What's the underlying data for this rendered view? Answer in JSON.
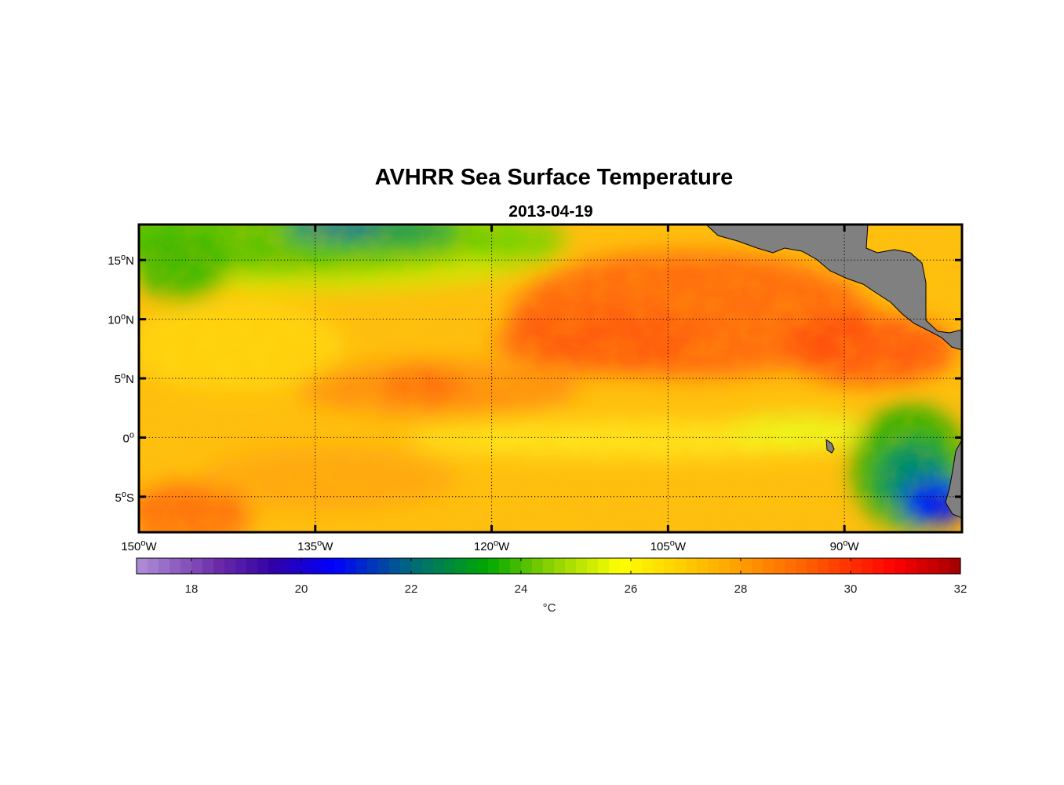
{
  "title": "AVHRR Sea Surface Temperature",
  "subtitle": "2013-04-19",
  "map": {
    "lon_range": [
      -150,
      -80
    ],
    "lat_range": [
      -8,
      18
    ],
    "lon_ticks": [
      {
        "value": -150,
        "num": "150",
        "sup": "o",
        "hemi": "W"
      },
      {
        "value": -135,
        "num": "135",
        "sup": "o",
        "hemi": "W"
      },
      {
        "value": -120,
        "num": "120",
        "sup": "o",
        "hemi": "W"
      },
      {
        "value": -105,
        "num": "105",
        "sup": "o",
        "hemi": "W"
      },
      {
        "value": -90,
        "num": "90",
        "sup": "o",
        "hemi": "W"
      }
    ],
    "lat_ticks": [
      {
        "value": 15,
        "num": "15",
        "sup": "o",
        "hemi": "N"
      },
      {
        "value": 10,
        "num": "10",
        "sup": "o",
        "hemi": "N"
      },
      {
        "value": 5,
        "num": "5",
        "sup": "o",
        "hemi": "N"
      },
      {
        "value": 0,
        "num": "0",
        "sup": "o",
        "hemi": ""
      },
      {
        "value": -5,
        "num": "5",
        "sup": "o",
        "hemi": "S"
      }
    ],
    "grid": true,
    "land_color": "#808080"
  },
  "colorbar": {
    "range": [
      17,
      32
    ],
    "ticks": [
      18,
      20,
      22,
      24,
      26,
      28,
      30,
      32
    ],
    "tick_labels": [
      "18",
      "20",
      "22",
      "24",
      "26",
      "28",
      "30",
      "32"
    ],
    "unit_label": "°C",
    "stops": [
      {
        "v": 17,
        "c": "#b090d8"
      },
      {
        "v": 18.5,
        "c": "#6a2aa8"
      },
      {
        "v": 19.5,
        "c": "#3000a8"
      },
      {
        "v": 20.6,
        "c": "#0000ff"
      },
      {
        "v": 22,
        "c": "#006a7a"
      },
      {
        "v": 23.4,
        "c": "#00a800"
      },
      {
        "v": 24.4,
        "c": "#7ccd00"
      },
      {
        "v": 25.8,
        "c": "#ffff00"
      },
      {
        "v": 27.6,
        "c": "#ffb000"
      },
      {
        "v": 29.2,
        "c": "#ff6000"
      },
      {
        "v": 30.8,
        "c": "#ff0000"
      },
      {
        "v": 32,
        "c": "#a00000"
      }
    ]
  }
}
